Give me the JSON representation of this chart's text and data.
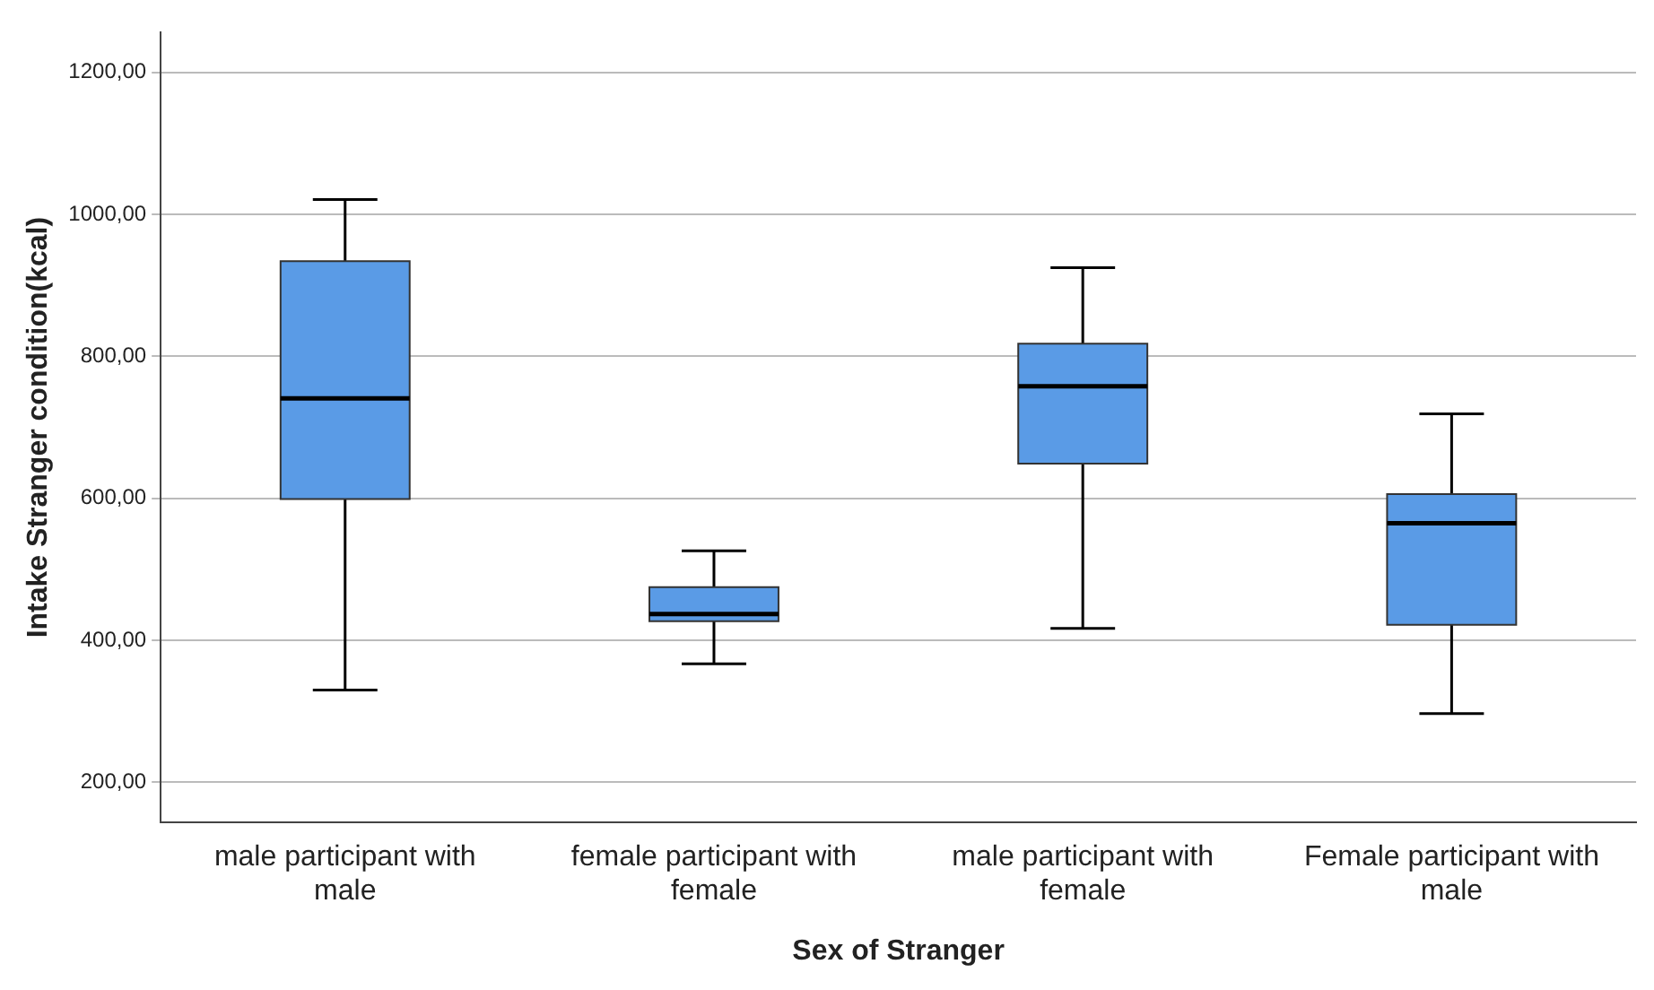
{
  "chart_data": {
    "type": "box",
    "xlabel": "Sex of Stranger",
    "ylabel": "Intake Stranger condition(kcal)",
    "categories": [
      "male participant with male",
      "female participant with female",
      "male participant with female",
      "Female participant with male"
    ],
    "series": [
      {
        "color": "#5a9be6",
        "boxes": [
          {
            "low": 330,
            "q1": 599,
            "median": 741,
            "q3": 934,
            "high": 1021
          },
          {
            "low": 367,
            "q1": 427,
            "median": 437,
            "q3": 475,
            "high": 526
          },
          {
            "low": 417,
            "q1": 649,
            "median": 758,
            "q3": 818,
            "high": 925
          },
          {
            "low": 297,
            "q1": 422,
            "median": 565,
            "q3": 606,
            "high": 719
          }
        ]
      }
    ],
    "ylim": [
      144,
      1256
    ],
    "yticks": [
      {
        "value": 200,
        "label": "200,00"
      },
      {
        "value": 400,
        "label": "400,00"
      },
      {
        "value": 600,
        "label": "600,00"
      },
      {
        "value": 800,
        "label": "800,00"
      },
      {
        "value": 1000,
        "label": "1000,00"
      },
      {
        "value": 1200,
        "label": "1200,00"
      }
    ],
    "grid": "y",
    "legend": false
  }
}
